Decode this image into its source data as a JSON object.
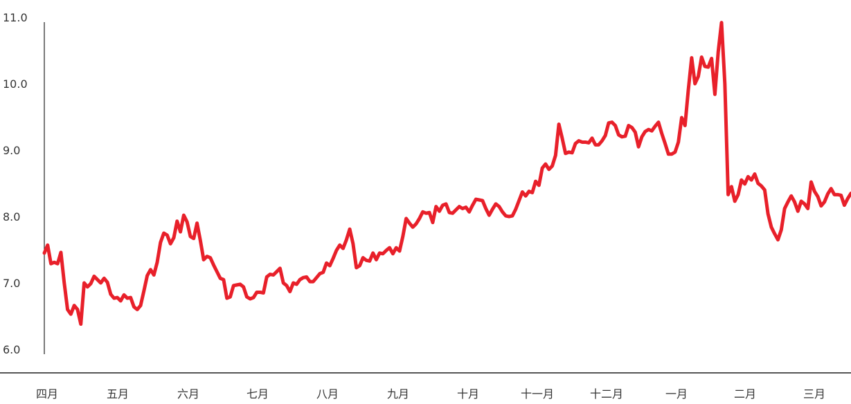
{
  "chart_data": {
    "type": "line",
    "title": "",
    "xlabel": "",
    "ylabel": "",
    "ylim": [
      6.0,
      11.0
    ],
    "y_ticks": [
      "6.0",
      "7.0",
      "8.0",
      "9.0",
      "10.0",
      "11.0"
    ],
    "y_tick_values": [
      6,
      7,
      8,
      9,
      10,
      11
    ],
    "x_tick_labels": [
      "四月",
      "五月",
      "六月",
      "七月",
      "八月",
      "九月",
      "十月",
      "十一月",
      "十二月",
      "一月",
      "二月",
      "三月"
    ],
    "grid": false,
    "legend": "none",
    "series": [
      {
        "color": "#e8202a",
        "values": [
          7.45,
          7.57,
          7.29,
          7.31,
          7.29,
          7.46,
          7.0,
          6.6,
          6.53,
          6.66,
          6.6,
          6.38,
          7.0,
          6.94,
          6.99,
          7.1,
          7.05,
          7.0,
          7.07,
          7.01,
          6.83,
          6.77,
          6.78,
          6.73,
          6.82,
          6.77,
          6.78,
          6.64,
          6.6,
          6.66,
          6.88,
          7.11,
          7.2,
          7.12,
          7.31,
          7.61,
          7.75,
          7.72,
          7.59,
          7.68,
          7.93,
          7.77,
          8.02,
          7.92,
          7.7,
          7.67,
          7.9,
          7.64,
          7.35,
          7.4,
          7.38,
          7.27,
          7.17,
          7.07,
          7.05,
          6.77,
          6.79,
          6.96,
          6.97,
          6.98,
          6.94,
          6.79,
          6.76,
          6.78,
          6.86,
          6.86,
          6.85,
          7.09,
          7.13,
          7.12,
          7.17,
          7.22,
          7.0,
          6.96,
          6.87,
          7.0,
          6.98,
          7.05,
          7.08,
          7.09,
          7.02,
          7.02,
          7.08,
          7.14,
          7.16,
          7.3,
          7.26,
          7.37,
          7.49,
          7.57,
          7.52,
          7.65,
          7.81,
          7.59,
          7.23,
          7.26,
          7.38,
          7.34,
          7.33,
          7.45,
          7.35,
          7.45,
          7.44,
          7.49,
          7.53,
          7.44,
          7.53,
          7.48,
          7.7,
          7.97,
          7.9,
          7.84,
          7.89,
          7.97,
          8.07,
          8.05,
          8.06,
          7.91,
          8.15,
          8.08,
          8.17,
          8.19,
          8.06,
          8.05,
          8.1,
          8.15,
          8.12,
          8.14,
          8.07,
          8.17,
          8.26,
          8.25,
          8.24,
          8.12,
          8.02,
          8.11,
          8.19,
          8.15,
          8.07,
          8.01,
          8.0,
          8.01,
          8.11,
          8.24,
          8.37,
          8.31,
          8.38,
          8.36,
          8.53,
          8.47,
          8.73,
          8.79,
          8.71,
          8.76,
          8.92,
          9.39,
          9.18,
          8.95,
          8.97,
          8.96,
          9.1,
          9.14,
          9.12,
          9.12,
          9.11,
          9.18,
          9.08,
          9.08,
          9.14,
          9.22,
          9.41,
          9.42,
          9.37,
          9.23,
          9.2,
          9.21,
          9.37,
          9.34,
          9.27,
          9.05,
          9.2,
          9.28,
          9.31,
          9.29,
          9.36,
          9.42,
          9.25,
          9.1,
          8.94,
          8.94,
          8.97,
          9.12,
          9.49,
          9.37,
          9.91,
          10.39,
          10.0,
          10.11,
          10.4,
          10.26,
          10.25,
          10.38,
          9.84,
          10.48,
          10.92,
          10.0,
          8.33,
          8.45,
          8.23,
          8.33,
          8.55,
          8.49,
          8.6,
          8.55,
          8.64,
          8.5,
          8.46,
          8.4,
          8.04,
          7.84,
          7.74,
          7.65,
          7.8,
          8.12,
          8.22,
          8.31,
          8.22,
          8.08,
          8.23,
          8.19,
          8.12,
          8.52,
          8.38,
          8.3,
          8.16,
          8.22,
          8.34,
          8.42,
          8.33,
          8.33,
          8.32,
          8.17,
          8.27,
          8.35
        ]
      }
    ]
  }
}
